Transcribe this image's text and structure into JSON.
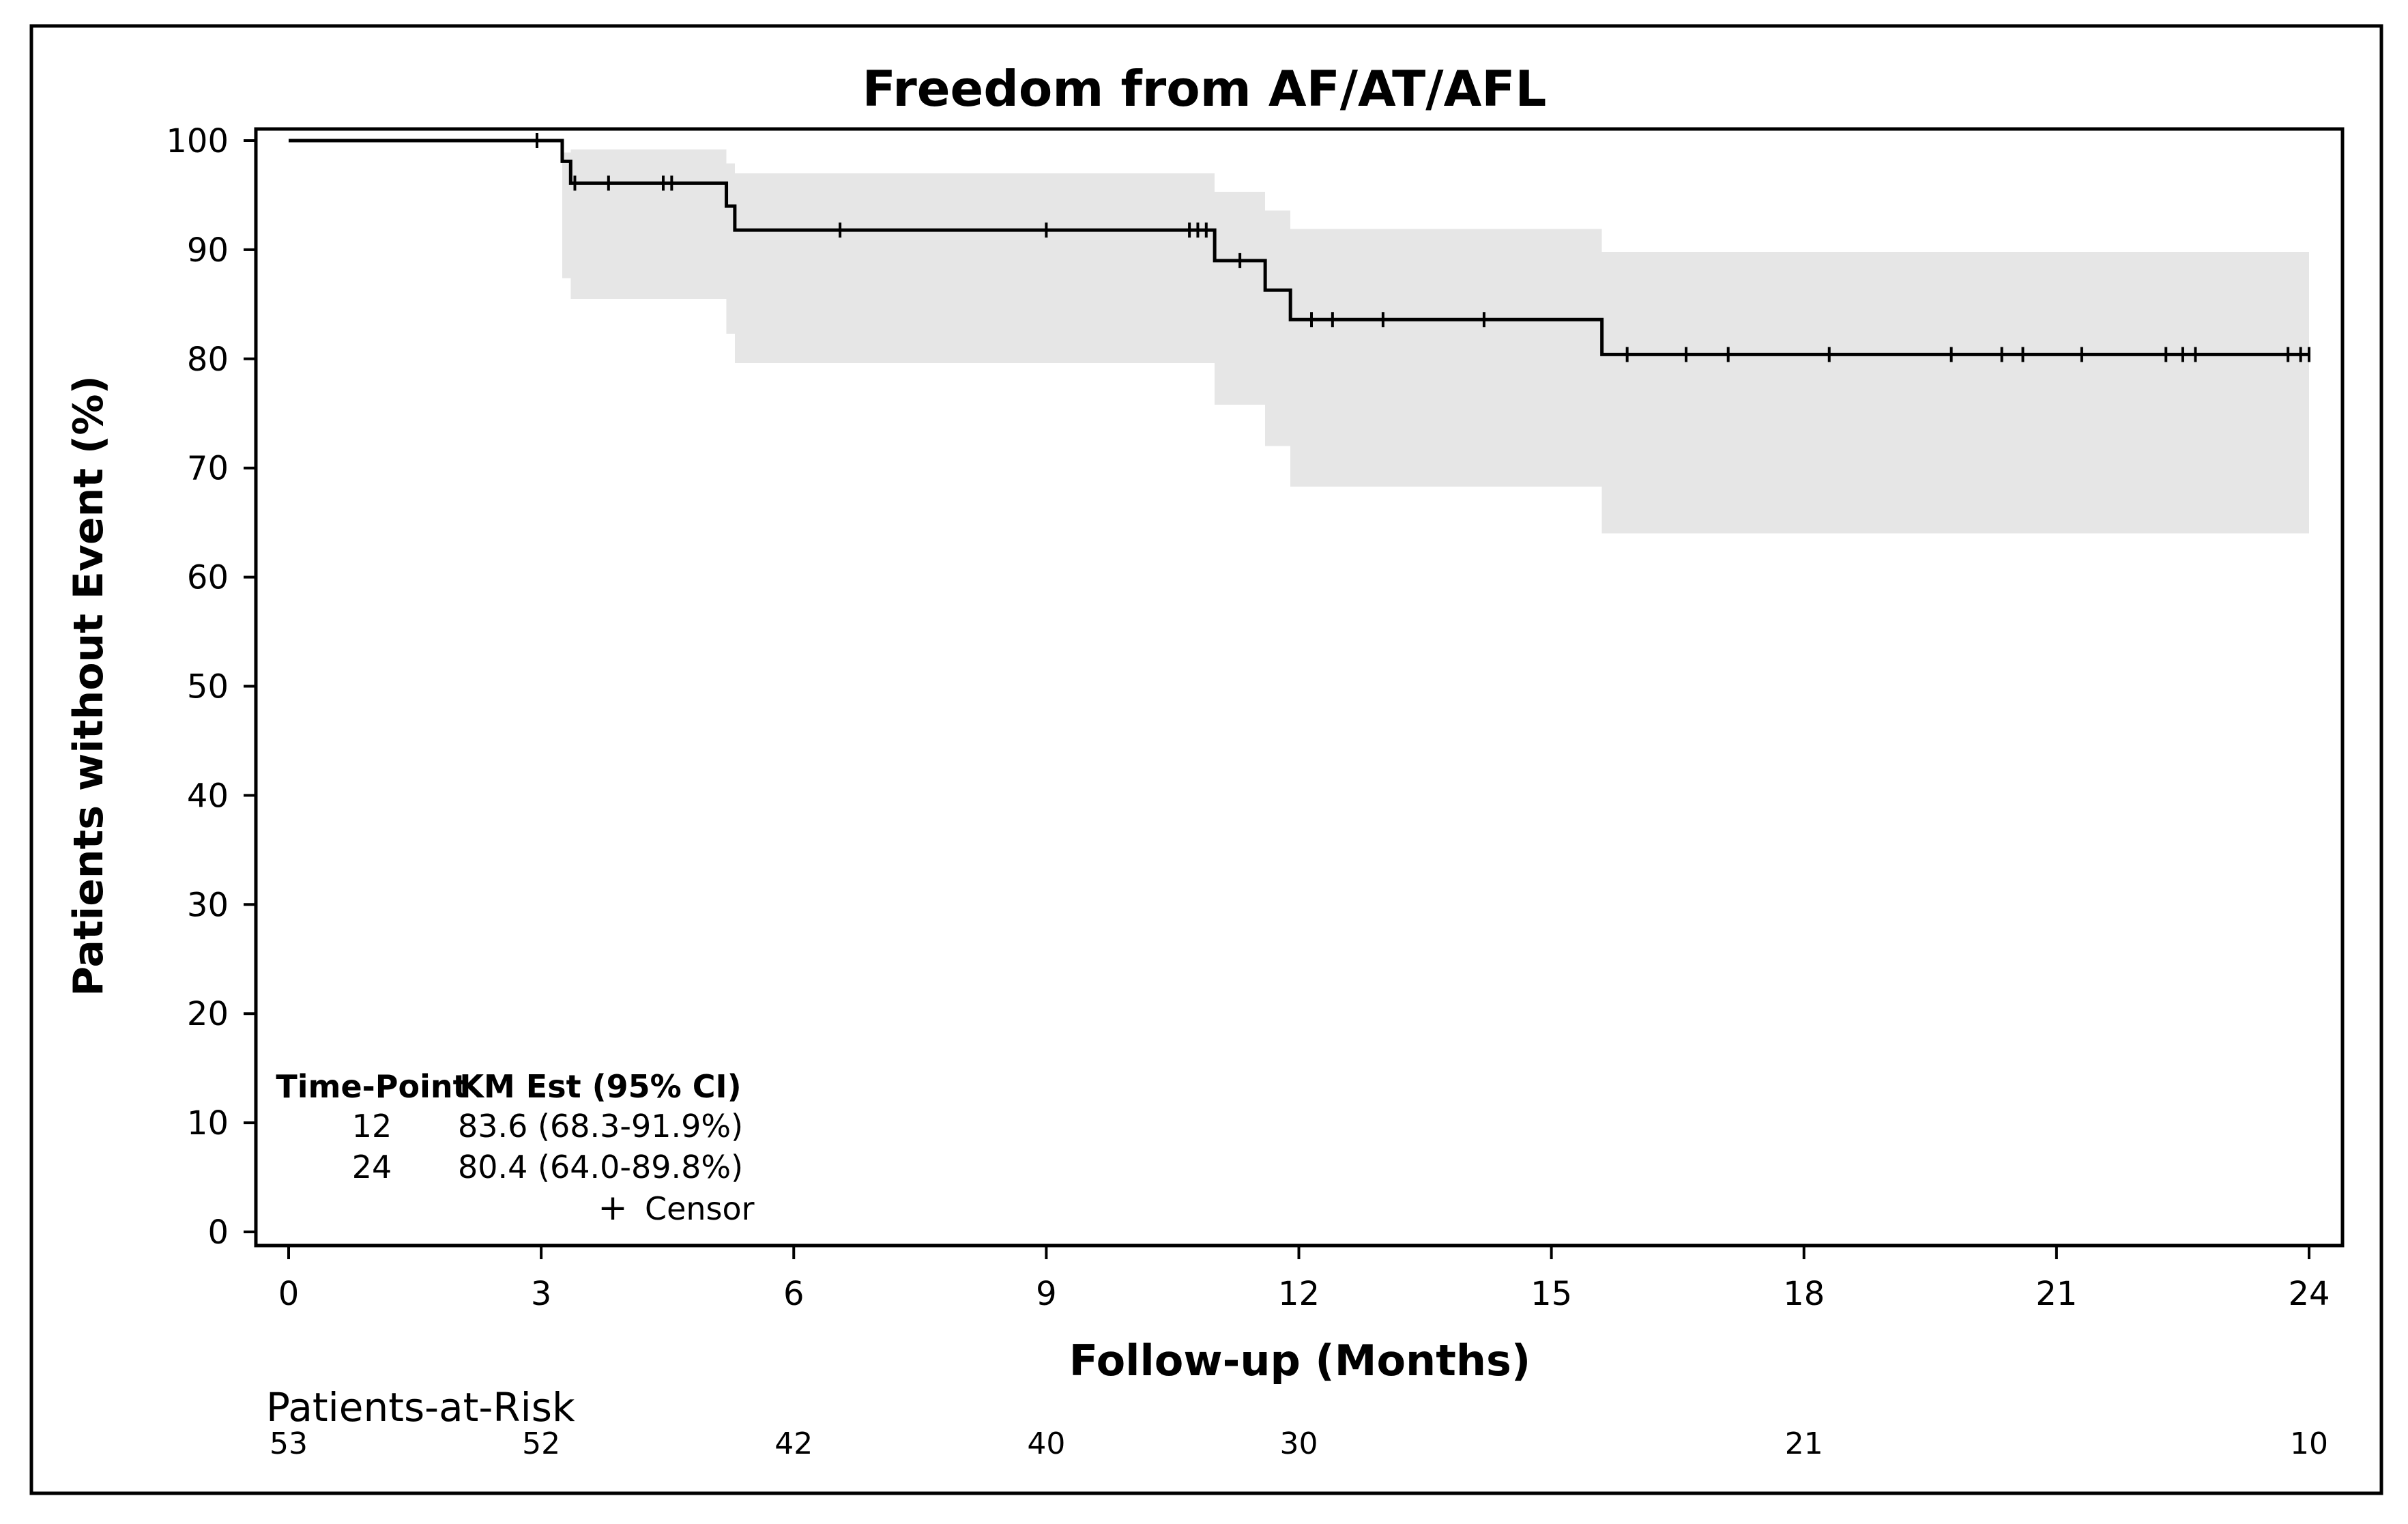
{
  "chart_data": {
    "type": "line",
    "subtype": "kaplan-meier",
    "title": "Freedom from AF/AT/AFL",
    "xlabel": "Follow-up (Months)",
    "ylabel": "Patients without Event (%)",
    "xlim": [
      0,
      24
    ],
    "ylim": [
      0,
      100
    ],
    "x_ticks": [
      0,
      3,
      6,
      9,
      12,
      15,
      18,
      21,
      24
    ],
    "y_ticks": [
      0,
      10,
      20,
      30,
      40,
      50,
      60,
      70,
      80,
      90,
      100
    ],
    "grid": false,
    "series": [
      {
        "type": "step",
        "x": [
          0,
          3.25,
          3.35,
          5.2,
          5.3,
          11.0,
          11.6,
          11.9,
          15.6,
          24
        ],
        "y": [
          100,
          98.1,
          96.1,
          94.0,
          91.8,
          89.0,
          86.3,
          83.6,
          80.4,
          80.4
        ]
      }
    ],
    "confidence_band": {
      "x": [
        3.25,
        3.35,
        5.2,
        5.3,
        11.0,
        11.6,
        11.9,
        15.6,
        24
      ],
      "lower": [
        87.4,
        85.5,
        82.3,
        79.6,
        75.8,
        72.0,
        68.3,
        64.0,
        64.0
      ],
      "upper": [
        98.9,
        99.2,
        97.9,
        97.0,
        95.3,
        93.6,
        91.9,
        89.8,
        89.8
      ]
    },
    "censor_times": [
      2.95,
      3.4,
      3.8,
      4.45,
      4.55,
      6.55,
      9.0,
      10.7,
      10.8,
      10.9,
      11.3,
      12.15,
      12.4,
      13.0,
      14.2,
      15.9,
      16.6,
      17.1,
      18.3,
      19.75,
      20.35,
      20.6,
      21.3,
      22.3,
      22.5,
      22.65,
      23.75,
      23.9,
      24.0
    ],
    "estimates_table": {
      "headers": [
        "Time-Point",
        "KM Est (95% CI)"
      ],
      "rows": [
        {
          "time": "12",
          "estimate": "83.6 (68.3-91.9%)"
        },
        {
          "time": "24",
          "estimate": "80.4 (64.0-89.8%)"
        }
      ],
      "legend_symbol": "+",
      "legend_label": "Censor"
    },
    "at_risk": {
      "label": "Patients-at-Risk",
      "x": [
        0,
        3,
        6,
        9,
        12,
        18,
        24
      ],
      "counts": [
        "53",
        "52",
        "42",
        "40",
        "30",
        "21",
        "10"
      ]
    },
    "colors": {
      "line": "#000000",
      "band": "#e6e6e6",
      "axis": "#000000",
      "background": "#ffffff"
    }
  }
}
